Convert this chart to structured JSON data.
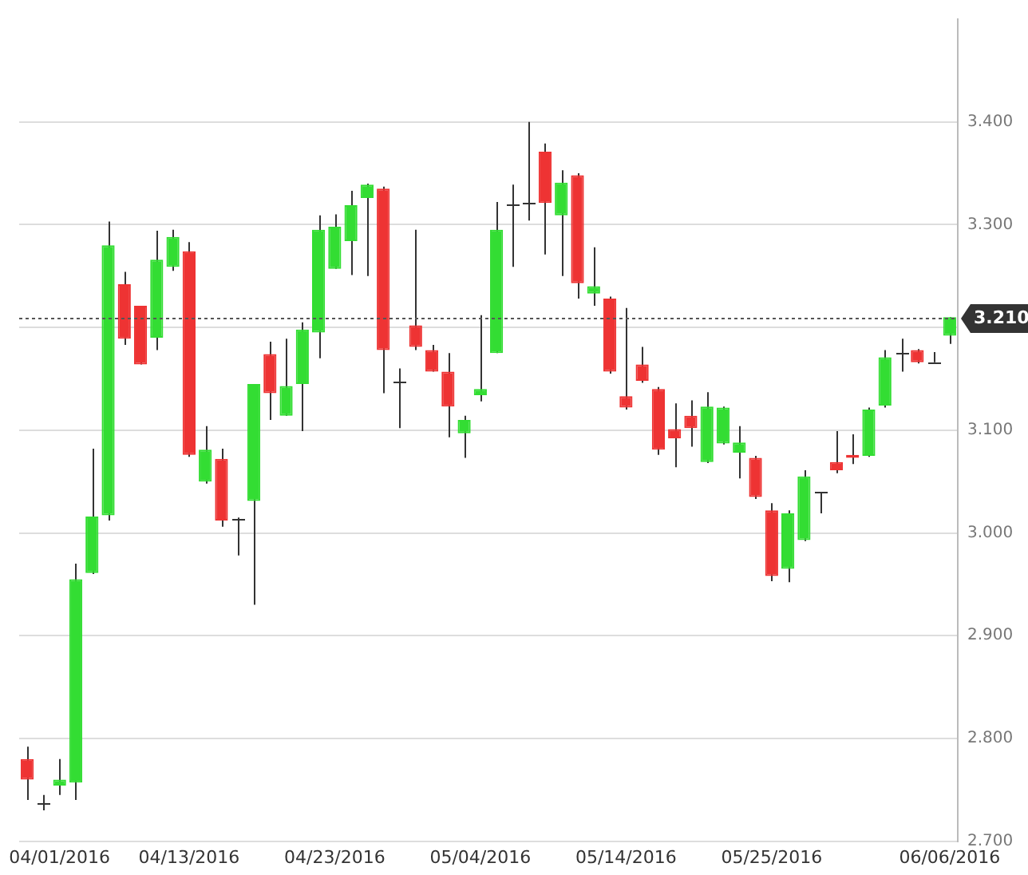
{
  "chart_data": {
    "type": "candlestick",
    "categories": [
      null,
      null,
      "04/01/2016",
      null,
      null,
      null,
      null,
      null,
      null,
      null,
      "04/13/2016",
      null,
      null,
      null,
      null,
      null,
      null,
      null,
      null,
      "04/23/2016",
      null,
      null,
      null,
      null,
      null,
      null,
      null,
      null,
      "05/04/2016",
      null,
      null,
      null,
      null,
      null,
      null,
      null,
      null,
      "05/14/2016",
      null,
      null,
      null,
      null,
      null,
      null,
      null,
      null,
      "05/25/2016",
      null,
      null,
      null,
      null,
      null,
      null,
      null,
      null,
      null,
      null,
      "06/06/2016"
    ],
    "ohlc": [
      [
        2.78,
        2.792,
        2.74,
        2.76
      ],
      [
        2.737,
        2.745,
        2.73,
        2.737
      ],
      [
        2.754,
        2.78,
        2.745,
        2.76
      ],
      [
        2.757,
        2.97,
        2.74,
        2.955
      ],
      [
        2.961,
        3.082,
        2.96,
        3.016
      ],
      [
        3.017,
        3.303,
        3.012,
        3.28
      ],
      [
        3.242,
        3.254,
        3.183,
        3.189
      ],
      [
        3.221,
        3.221,
        3.164,
        3.164
      ],
      [
        3.19,
        3.294,
        3.178,
        3.266
      ],
      [
        3.259,
        3.295,
        3.255,
        3.288
      ],
      [
        3.274,
        3.283,
        3.074,
        3.076
      ],
      [
        3.05,
        3.104,
        3.048,
        3.081
      ],
      [
        3.072,
        3.082,
        3.006,
        3.012
      ],
      [
        3.014,
        3.015,
        2.978,
        3.014
      ],
      [
        3.031,
        3.145,
        2.93,
        3.145
      ],
      [
        3.174,
        3.186,
        3.11,
        3.136
      ],
      [
        3.114,
        3.189,
        3.114,
        3.143
      ],
      [
        3.145,
        3.205,
        3.099,
        3.198
      ],
      [
        3.195,
        3.309,
        3.17,
        3.295
      ],
      [
        3.257,
        3.31,
        3.257,
        3.298
      ],
      [
        3.284,
        3.333,
        3.251,
        3.319
      ],
      [
        3.326,
        3.34,
        3.25,
        3.339
      ],
      [
        3.335,
        3.337,
        3.136,
        3.178
      ],
      [
        3.148,
        3.16,
        3.102,
        3.148
      ],
      [
        3.202,
        3.295,
        3.178,
        3.181
      ],
      [
        3.178,
        3.183,
        3.157,
        3.157
      ],
      [
        3.157,
        3.175,
        3.093,
        3.123
      ],
      [
        3.097,
        3.114,
        3.073,
        3.11
      ],
      [
        3.134,
        3.212,
        3.128,
        3.14
      ],
      [
        3.175,
        3.322,
        3.175,
        3.295
      ],
      [
        3.319,
        3.339,
        3.259,
        3.319
      ],
      [
        3.322,
        3.4,
        3.304,
        3.322
      ],
      [
        3.371,
        3.379,
        3.271,
        3.321
      ],
      [
        3.309,
        3.353,
        3.25,
        3.341
      ],
      [
        3.348,
        3.35,
        3.228,
        3.243
      ],
      [
        3.233,
        3.278,
        3.221,
        3.24
      ],
      [
        3.228,
        3.23,
        3.155,
        3.157
      ],
      [
        3.133,
        3.219,
        3.12,
        3.122
      ],
      [
        3.164,
        3.181,
        3.146,
        3.148
      ],
      [
        3.14,
        3.142,
        3.076,
        3.081
      ],
      [
        3.101,
        3.126,
        3.064,
        3.092
      ],
      [
        3.114,
        3.129,
        3.084,
        3.102
      ],
      [
        3.069,
        3.137,
        3.068,
        3.123
      ],
      [
        3.087,
        3.123,
        3.086,
        3.122
      ],
      [
        3.078,
        3.104,
        3.053,
        3.088
      ],
      [
        3.073,
        3.075,
        3.033,
        3.035
      ],
      [
        3.022,
        3.029,
        2.953,
        2.958
      ],
      [
        2.965,
        3.022,
        2.952,
        3.019
      ],
      [
        2.993,
        3.061,
        2.992,
        3.055
      ],
      [
        3.04,
        3.04,
        3.019,
        3.04
      ],
      [
        3.069,
        3.099,
        3.058,
        3.061
      ],
      [
        3.076,
        3.096,
        3.067,
        3.073
      ],
      [
        3.075,
        3.122,
        3.074,
        3.12
      ],
      [
        3.124,
        3.178,
        3.122,
        3.171
      ],
      [
        3.175,
        3.189,
        3.157,
        3.175
      ],
      [
        3.178,
        3.179,
        3.165,
        3.166
      ],
      [
        3.166,
        3.176,
        3.166,
        3.166
      ],
      [
        3.192,
        3.21,
        3.184,
        3.21
      ]
    ],
    "colors": [
      "#ee3333",
      "#333333",
      "#33dd33",
      "#33dd33",
      "#33dd33",
      "#33dd33",
      "#ee3333",
      "#ee3333",
      "#33dd33",
      "#33dd33",
      "#ee3333",
      "#33dd33",
      "#ee3333",
      "#333333",
      "#33dd33",
      "#ee3333",
      "#33dd33",
      "#33dd33",
      "#33dd33",
      "#33dd33",
      "#33dd33",
      "#33dd33",
      "#ee3333",
      "#333333",
      "#ee3333",
      "#ee3333",
      "#ee3333",
      "#33dd33",
      "#33dd33",
      "#33dd33",
      "#333333",
      "#333333",
      "#ee3333",
      "#33dd33",
      "#ee3333",
      "#33dd33",
      "#ee3333",
      "#ee3333",
      "#ee3333",
      "#ee3333",
      "#ee3333",
      "#ee3333",
      "#33dd33",
      "#33dd33",
      "#33dd33",
      "#ee3333",
      "#ee3333",
      "#33dd33",
      "#33dd33",
      "#333333",
      "#ee3333",
      "#ee3333",
      "#33dd33",
      "#33dd33",
      "#333333",
      "#ee3333",
      "#333333",
      "#33dd33"
    ],
    "ylim": [
      2.7,
      3.5
    ],
    "yticks": [
      {
        "value": 2.7,
        "label": "2.700"
      },
      {
        "value": 2.8,
        "label": "2.800"
      },
      {
        "value": 2.9,
        "label": "2.900"
      },
      {
        "value": 3.0,
        "label": "3.000"
      },
      {
        "value": 3.1,
        "label": "3.100"
      },
      {
        "value": 3.2,
        "label": null
      },
      {
        "value": 3.3,
        "label": "3.300"
      },
      {
        "value": 3.4,
        "label": "3.400"
      }
    ],
    "grid": "y",
    "ref_lines": [
      {
        "axis": "y",
        "value": 3.21,
        "label": "3.210",
        "line_style": "dotted",
        "color": "#555555"
      }
    ]
  }
}
